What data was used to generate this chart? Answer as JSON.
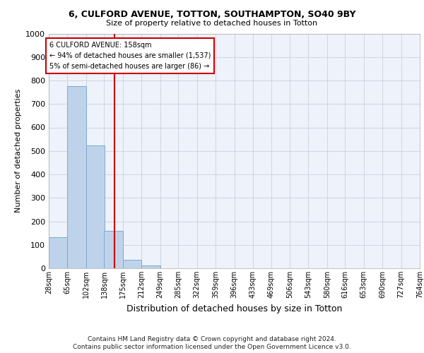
{
  "title1": "6, CULFORD AVENUE, TOTTON, SOUTHAMPTON, SO40 9BY",
  "title2": "Size of property relative to detached houses in Totton",
  "xlabel": "Distribution of detached houses by size in Totton",
  "ylabel": "Number of detached properties",
  "footnote1": "Contains HM Land Registry data © Crown copyright and database right 2024.",
  "footnote2": "Contains public sector information licensed under the Open Government Licence v3.0.",
  "annotation_title": "6 CULFORD AVENUE: 158sqm",
  "annotation_line1": "← 94% of detached houses are smaller (1,537)",
  "annotation_line2": "5% of semi-detached houses are larger (86) →",
  "property_line_x": 158,
  "bar_color": "#bed3ea",
  "bar_edge_color": "#7aaacf",
  "vline_color": "#cc0000",
  "annotation_box_color": "#cc0000",
  "background_color": "#eef2fa",
  "grid_color": "#c8d0e0",
  "bin_edges": [
    28,
    65,
    102,
    138,
    175,
    212,
    249,
    285,
    322,
    359,
    396,
    433,
    469,
    506,
    543,
    580,
    616,
    653,
    690,
    727,
    764
  ],
  "bin_counts": [
    133,
    776,
    524,
    160,
    37,
    13,
    0,
    0,
    0,
    0,
    0,
    0,
    0,
    0,
    0,
    0,
    0,
    0,
    0,
    0
  ],
  "ylim": [
    0,
    1000
  ],
  "yticks": [
    0,
    100,
    200,
    300,
    400,
    500,
    600,
    700,
    800,
    900,
    1000
  ]
}
